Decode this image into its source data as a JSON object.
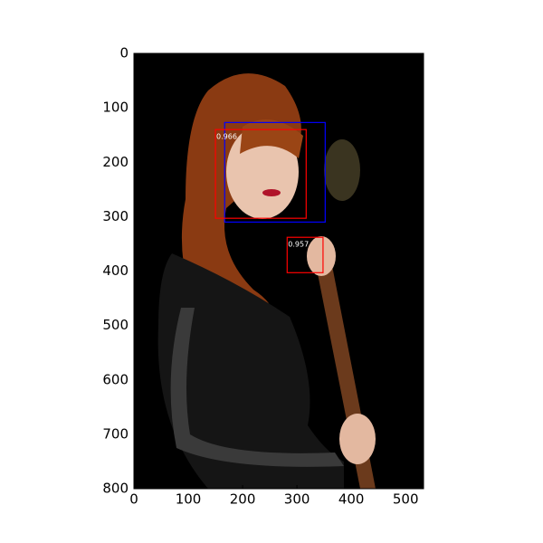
{
  "chart_data": {
    "type": "detection",
    "xlim": [
      0,
      533
    ],
    "ylim": [
      800,
      0
    ],
    "xticks": [
      0,
      100,
      200,
      300,
      400,
      500
    ],
    "yticks": [
      0,
      100,
      200,
      300,
      400,
      500,
      600,
      700,
      800
    ],
    "boxes": [
      {
        "x0": 167,
        "y0": 127,
        "x1": 352,
        "y1": 310,
        "color": "#0000ff"
      },
      {
        "x0": 150,
        "y0": 140,
        "x1": 317,
        "y1": 303,
        "color": "#ff0000",
        "score": 0.966
      },
      {
        "x0": 282,
        "y0": 338,
        "x1": 348,
        "y1": 403,
        "color": "#ff0000",
        "score": 0.957
      }
    ]
  }
}
